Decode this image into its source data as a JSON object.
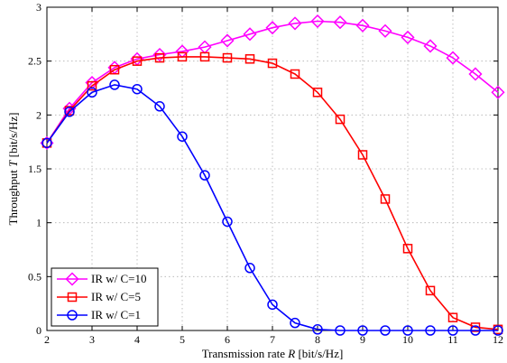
{
  "chart_data": {
    "type": "line",
    "xlabel": {
      "prefix": "Transmission rate ",
      "var": "R",
      "suffix": " [bit/s/Hz]"
    },
    "ylabel": {
      "prefix": "Throughput ",
      "var": "T",
      "suffix": " [bit/s/Hz]"
    },
    "xlim": [
      2,
      12
    ],
    "ylim": [
      0,
      3
    ],
    "xticks": [
      2,
      3,
      4,
      5,
      6,
      7,
      8,
      9,
      10,
      11,
      12
    ],
    "xtick_labels": [
      "2",
      "3",
      "4",
      "5",
      "6",
      "7",
      "8",
      "9",
      "10",
      "11",
      "12"
    ],
    "yticks": [
      0,
      0.5,
      1,
      1.5,
      2,
      2.5,
      3
    ],
    "ytick_labels": [
      "0",
      "0.5",
      "1",
      "1.5",
      "2",
      "2.5",
      "3"
    ],
    "grid": true,
    "legend_position": "bottom-left",
    "x": [
      2,
      2.5,
      3,
      3.5,
      4,
      4.5,
      5,
      5.5,
      6,
      6.5,
      7,
      7.5,
      8,
      8.5,
      9,
      9.5,
      10,
      10.5,
      11,
      11.5,
      12
    ],
    "series": [
      {
        "name": "IR w/ C=10",
        "color": "#ff00ff",
        "marker": "diamond",
        "values": [
          1.74,
          2.06,
          2.3,
          2.44,
          2.52,
          2.56,
          2.59,
          2.63,
          2.69,
          2.75,
          2.81,
          2.85,
          2.87,
          2.86,
          2.83,
          2.78,
          2.72,
          2.64,
          2.53,
          2.38,
          2.21
        ]
      },
      {
        "name": "IR w/ C=5",
        "color": "#ff0000",
        "marker": "square",
        "values": [
          1.74,
          2.04,
          2.27,
          2.42,
          2.5,
          2.53,
          2.54,
          2.54,
          2.53,
          2.52,
          2.48,
          2.38,
          2.21,
          1.96,
          1.63,
          1.22,
          0.76,
          0.37,
          0.12,
          0.03,
          0.01
        ]
      },
      {
        "name": "IR w/ C=1",
        "color": "#0000ff",
        "marker": "circle",
        "values": [
          1.74,
          2.03,
          2.21,
          2.28,
          2.24,
          2.08,
          1.8,
          1.44,
          1.01,
          0.58,
          0.24,
          0.07,
          0.01,
          0.0,
          0.0,
          0.0,
          0.0,
          0.0,
          0.0,
          0.0,
          0.0
        ]
      }
    ]
  }
}
